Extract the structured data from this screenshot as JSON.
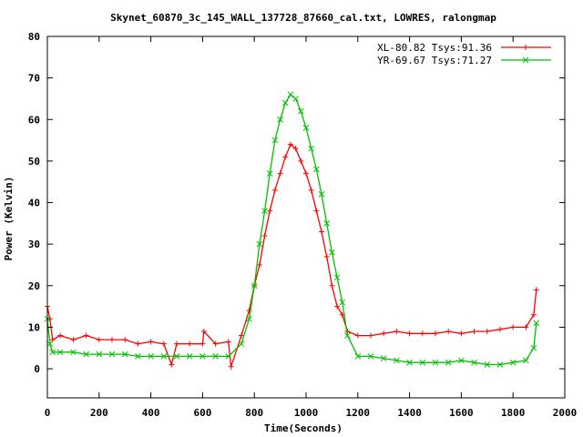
{
  "chart_data": {
    "type": "line",
    "title": "Skynet_60870_3c_145_WALL_137728_87660_cal.txt, LOWRES, ralongmap",
    "xlabel": "Time(Seconds)",
    "ylabel": "Power (Kelvin)",
    "xlim": [
      0,
      2000
    ],
    "ylim": [
      -7,
      80
    ],
    "xticks": [
      0,
      200,
      400,
      600,
      800,
      1000,
      1200,
      1400,
      1600,
      1800,
      2000
    ],
    "yticks": [
      0,
      10,
      20,
      30,
      40,
      50,
      60,
      70,
      80
    ],
    "grid": false,
    "legend_position": "top-right",
    "series": [
      {
        "name": "XL-80.82 Tsys:91.36",
        "color": "#ff0000",
        "marker": "plus",
        "points": [
          [
            0,
            15
          ],
          [
            10,
            12
          ],
          [
            20,
            7
          ],
          [
            50,
            8
          ],
          [
            100,
            7
          ],
          [
            150,
            8
          ],
          [
            200,
            7
          ],
          [
            250,
            7
          ],
          [
            300,
            7
          ],
          [
            350,
            6
          ],
          [
            400,
            6.5
          ],
          [
            450,
            6
          ],
          [
            480,
            1
          ],
          [
            500,
            6
          ],
          [
            550,
            6
          ],
          [
            600,
            6
          ],
          [
            605,
            9
          ],
          [
            650,
            6
          ],
          [
            700,
            6.5
          ],
          [
            710,
            0.5
          ],
          [
            750,
            8
          ],
          [
            780,
            14
          ],
          [
            800,
            20
          ],
          [
            820,
            25
          ],
          [
            840,
            32
          ],
          [
            860,
            38
          ],
          [
            880,
            43
          ],
          [
            900,
            47
          ],
          [
            920,
            51
          ],
          [
            940,
            54
          ],
          [
            960,
            53
          ],
          [
            980,
            50
          ],
          [
            1000,
            47
          ],
          [
            1020,
            43
          ],
          [
            1040,
            38
          ],
          [
            1060,
            33
          ],
          [
            1080,
            27
          ],
          [
            1100,
            20
          ],
          [
            1120,
            15
          ],
          [
            1140,
            13
          ],
          [
            1160,
            9
          ],
          [
            1200,
            8
          ],
          [
            1250,
            8
          ],
          [
            1300,
            8.5
          ],
          [
            1350,
            9
          ],
          [
            1400,
            8.5
          ],
          [
            1450,
            8.5
          ],
          [
            1500,
            8.5
          ],
          [
            1550,
            9
          ],
          [
            1600,
            8.5
          ],
          [
            1650,
            9
          ],
          [
            1700,
            9
          ],
          [
            1750,
            9.5
          ],
          [
            1800,
            10
          ],
          [
            1850,
            10
          ],
          [
            1880,
            13
          ],
          [
            1890,
            19
          ]
        ]
      },
      {
        "name": "YR-69.67 Tsys:71.27",
        "color": "#00c000",
        "marker": "cross",
        "points": [
          [
            0,
            12
          ],
          [
            10,
            6
          ],
          [
            20,
            4
          ],
          [
            50,
            4
          ],
          [
            100,
            4
          ],
          [
            150,
            3.5
          ],
          [
            200,
            3.5
          ],
          [
            250,
            3.5
          ],
          [
            300,
            3.5
          ],
          [
            350,
            3
          ],
          [
            400,
            3
          ],
          [
            450,
            3
          ],
          [
            500,
            3
          ],
          [
            550,
            3
          ],
          [
            600,
            3
          ],
          [
            650,
            3
          ],
          [
            700,
            3
          ],
          [
            750,
            6
          ],
          [
            780,
            12
          ],
          [
            800,
            20
          ],
          [
            820,
            30
          ],
          [
            840,
            38
          ],
          [
            860,
            47
          ],
          [
            880,
            55
          ],
          [
            900,
            60
          ],
          [
            920,
            64
          ],
          [
            940,
            66
          ],
          [
            960,
            65
          ],
          [
            980,
            62
          ],
          [
            1000,
            58
          ],
          [
            1020,
            53
          ],
          [
            1040,
            48
          ],
          [
            1060,
            42
          ],
          [
            1080,
            35
          ],
          [
            1100,
            28
          ],
          [
            1120,
            22
          ],
          [
            1140,
            16
          ],
          [
            1160,
            8
          ],
          [
            1200,
            3
          ],
          [
            1250,
            3
          ],
          [
            1300,
            2.5
          ],
          [
            1350,
            2
          ],
          [
            1400,
            1.5
          ],
          [
            1450,
            1.5
          ],
          [
            1500,
            1.5
          ],
          [
            1550,
            1.5
          ],
          [
            1600,
            2
          ],
          [
            1650,
            1.5
          ],
          [
            1700,
            1
          ],
          [
            1750,
            1
          ],
          [
            1800,
            1.5
          ],
          [
            1850,
            2
          ],
          [
            1880,
            5
          ],
          [
            1890,
            11
          ]
        ]
      }
    ]
  }
}
